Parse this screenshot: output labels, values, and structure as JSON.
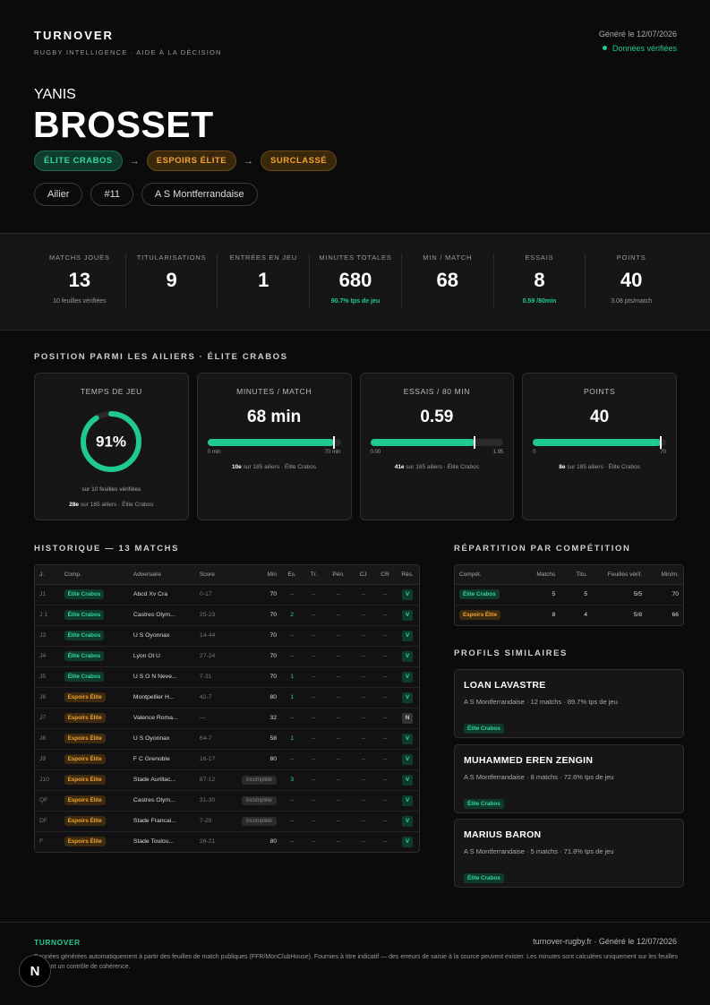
{
  "header": {
    "brand": "TURNOVER",
    "tagline": "RUGBY INTELLIGENCE · AIDE À LA DÉCISION",
    "generated": "Généré le 12/07/2026",
    "verified": "Données vérifiées"
  },
  "player": {
    "first_name": "YANIS",
    "last_name": "BROSSET",
    "path": [
      "ÉLITE CRABOS",
      "ESPOIRS ÉLITE",
      "SURCLASSÉ"
    ],
    "tags": [
      "Ailier",
      "#11",
      "A S Montferrandaise"
    ]
  },
  "stats": [
    {
      "label": "MATCHS JOUÉS",
      "value": "13",
      "note": "10 feuilles vérifiées"
    },
    {
      "label": "TITULARISATIONS",
      "value": "9"
    },
    {
      "label": "ENTRÉES EN JEU",
      "value": "1"
    },
    {
      "label": "MINUTES TOTALES",
      "value": "680",
      "highlight": "90.7% tps de jeu"
    },
    {
      "label": "MIN / MATCH",
      "value": "68"
    },
    {
      "label": "ESSAIS",
      "value": "8",
      "highlight": "0.59 /80min"
    },
    {
      "label": "POINTS",
      "value": "40",
      "note": "3.08 pts/match"
    }
  ],
  "ranking": {
    "title": "POSITION PARMI LES AILIERS · ÉLITE CRABOS",
    "cards": [
      {
        "title": "TEMPS DE JEU",
        "value": 91,
        "value_label": "91%",
        "subtitle": "sur 10 feuilles vérifiées",
        "rank": "28e",
        "rank_text": "sur 185 ailiers · Élite Crabos"
      },
      {
        "title": "MINUTES / MATCH",
        "value_label": "68 min",
        "percentile": 95,
        "range": [
          "0 min",
          "70 min"
        ],
        "rank": "10e",
        "rank_text": "sur 185 ailiers · Élite Crabos"
      },
      {
        "title": "ESSAIS / 80 MIN",
        "value_label": "0.59",
        "percentile": 78,
        "range": [
          "0.00",
          "1.95"
        ],
        "rank": "41e",
        "rank_text": "sur 185 ailiers · Élite Crabos"
      },
      {
        "title": "POINTS",
        "value_label": "40",
        "percentile": 96,
        "range": [
          "0",
          "70"
        ],
        "rank": "8e",
        "rank_text": "sur 185 ailiers · Élite Crabos"
      }
    ]
  },
  "history": {
    "title": "HISTORIQUE — 13 MATCHS",
    "columns": [
      "J.",
      "Comp.",
      "Adversaire",
      "Score",
      "Min",
      "Es.",
      "Tr.",
      "Pén.",
      "CJ",
      "CR",
      "Rés."
    ],
    "rows": [
      [
        "J1",
        "Élite Crabos",
        "Abcd Xv Cra",
        "0-17",
        "70",
        "–",
        "–",
        "–",
        "–",
        "–",
        "V"
      ],
      [
        "J 1",
        "Élite Crabos",
        "Castres Olym...",
        "25-23",
        "70",
        "2",
        "–",
        "–",
        "–",
        "–",
        "V"
      ],
      [
        "J3",
        "Élite Crabos",
        "U S Oyonnax",
        "14-44",
        "70",
        "–",
        "–",
        "–",
        "–",
        "–",
        "V"
      ],
      [
        "J4",
        "Élite Crabos",
        "Lyon Ol U",
        "27-24",
        "70",
        "–",
        "–",
        "–",
        "–",
        "–",
        "V"
      ],
      [
        "J5",
        "Élite Crabos",
        "U S O N Neve...",
        "7-31",
        "70",
        "1",
        "–",
        "–",
        "–",
        "–",
        "V"
      ],
      [
        "J6",
        "Espoirs Élite",
        "Montpellier H...",
        "42-7",
        "80",
        "1",
        "–",
        "–",
        "–",
        "–",
        "V"
      ],
      [
        "J7",
        "Espoirs Élite",
        "Valence Roma...",
        "—",
        "32",
        "–",
        "–",
        "–",
        "–",
        "–",
        "N"
      ],
      [
        "J8",
        "Espoirs Élite",
        "U S Oyonnax",
        "64-7",
        "58",
        "1",
        "–",
        "–",
        "–",
        "–",
        "V"
      ],
      [
        "J9",
        "Espoirs Élite",
        "F C Grenoble",
        "16-17",
        "80",
        "–",
        "–",
        "–",
        "–",
        "–",
        "V"
      ],
      [
        "J10",
        "Espoirs Élite",
        "Stade Aurillac...",
        "87-12",
        "incomplète",
        "3",
        "–",
        "–",
        "–",
        "–",
        "V"
      ],
      [
        "QF",
        "Espoirs Élite",
        "Castres Olym...",
        "31-30",
        "incomplète",
        "–",
        "–",
        "–",
        "–",
        "–",
        "V"
      ],
      [
        "DF",
        "Espoirs Élite",
        "Stade Francai...",
        "7-28",
        "incomplète",
        "–",
        "–",
        "–",
        "–",
        "–",
        "V"
      ],
      [
        "F",
        "Espoirs Élite",
        "Stade Toulou...",
        "26-21",
        "80",
        "–",
        "–",
        "–",
        "–",
        "–",
        "V"
      ]
    ]
  },
  "competitions": {
    "title": "RÉPARTITION PAR COMPÉTITION",
    "columns": [
      "Compét.",
      "Matchs",
      "Titu.",
      "Feuilles vérif.",
      "Min/m."
    ],
    "rows": [
      [
        "Élite Crabos",
        "5",
        "5",
        "5/5",
        "70"
      ],
      [
        "Espoirs Élite",
        "8",
        "4",
        "5/8",
        "66"
      ]
    ]
  },
  "similar": {
    "title": "PROFILS SIMILAIRES",
    "profiles": [
      {
        "name": "LOAN LAVASTRE",
        "meta": "A S Montferrandaise · 12 matchs · 89.7% tps de jeu",
        "competition": "Élite Crabos"
      },
      {
        "name": "MUHAMMED EREN ZENGIN",
        "meta": "A S Montferrandaise · 8 matchs · 72.6% tps de jeu",
        "competition": "Élite Crabos"
      },
      {
        "name": "MARIUS BARON",
        "meta": "A S Montferrandaise · 5 matchs · 71.8% tps de jeu",
        "competition": "Élite Crabos"
      }
    ]
  },
  "footer": {
    "brand": "TURNOVER",
    "site": "turnover-rugby.fr · Généré le 12/07/2026",
    "disclaimer": "Données générées automatiquement à partir des feuilles de match publiques (FFR/MonClubHouse). Fournies à titre indicatif — des erreurs de saisie à la source peuvent exister. Les minutes sont calculées uniquement sur les feuilles passant un contrôle de cohérence.",
    "badge": "N"
  }
}
